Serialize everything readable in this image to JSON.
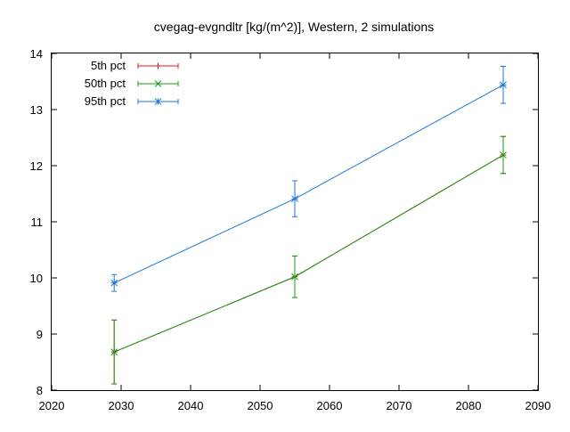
{
  "chart_data": {
    "type": "line",
    "title": "cvegag-evgndltr [kg/(m^2)], Western, 2 simulations",
    "xlabel": "",
    "ylabel": "",
    "xlim": [
      2020,
      2090
    ],
    "ylim": [
      8,
      14
    ],
    "xticks": [
      2020,
      2030,
      2040,
      2050,
      2060,
      2070,
      2080,
      2090
    ],
    "yticks": [
      8,
      9,
      10,
      11,
      12,
      13,
      14
    ],
    "grid": false,
    "legend_position": "top-left",
    "x": [
      2029,
      2055,
      2085
    ],
    "series": [
      {
        "name": "5th pct",
        "color": "#e41a1c",
        "marker": "plus",
        "values": [
          8.68,
          10.02,
          12.19
        ],
        "err_low": [
          8.11,
          9.65,
          11.86
        ],
        "err_high": [
          9.25,
          10.39,
          12.52
        ]
      },
      {
        "name": "50th pct",
        "color": "#1a9a1a",
        "marker": "x",
        "values": [
          8.68,
          10.02,
          12.19
        ],
        "err_low": [
          8.11,
          9.65,
          11.86
        ],
        "err_high": [
          9.25,
          10.39,
          12.52
        ]
      },
      {
        "name": "95th pct",
        "color": "#1c78d6",
        "marker": "star",
        "values": [
          9.91,
          11.41,
          13.44
        ],
        "err_low": [
          9.76,
          11.09,
          13.11
        ],
        "err_high": [
          10.06,
          11.73,
          13.77
        ]
      }
    ]
  }
}
